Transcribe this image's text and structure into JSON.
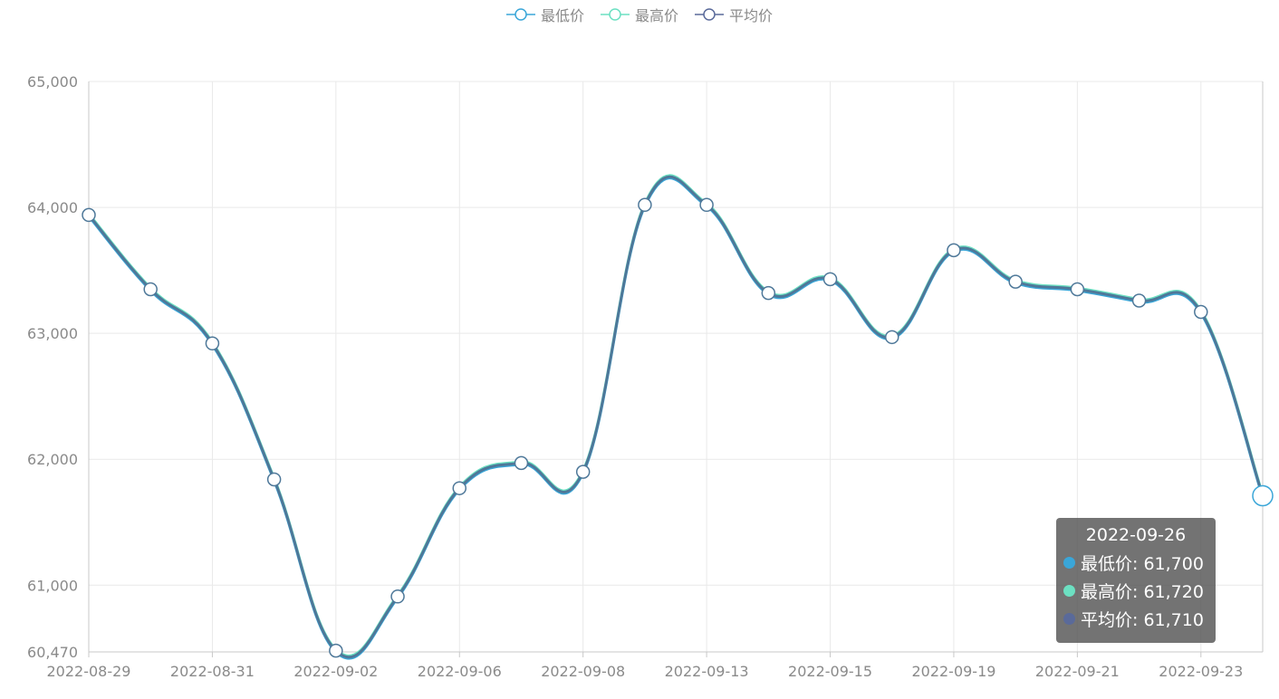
{
  "legend": [
    {
      "name": "最低价",
      "color": "#3aa6d8"
    },
    {
      "name": "最高价",
      "color": "#6ce0c2"
    },
    {
      "name": "平均价",
      "color": "#5a6a9a"
    }
  ],
  "tooltip": {
    "date": "2022-09-26",
    "rows": [
      {
        "label": "最低价: 61,700",
        "color": "#3aa6d8"
      },
      {
        "label": "最高价: 61,720",
        "color": "#6ce0c2"
      },
      {
        "label": "平均价: 61,710",
        "color": "#5a6a9a"
      }
    ]
  },
  "chart_data": {
    "type": "line",
    "title": "",
    "xlabel": "",
    "ylabel": "",
    "ylim": [
      60470,
      65000
    ],
    "y_ticks": [
      "65,000",
      "64,000",
      "63,000",
      "62,000",
      "61,000",
      "60,470"
    ],
    "y_tick_values": [
      65000,
      64000,
      63000,
      62000,
      61000,
      60470
    ],
    "x_tick_labels": [
      "2022-08-29",
      "2022-08-31",
      "2022-09-02",
      "2022-09-06",
      "2022-09-08",
      "2022-09-13",
      "2022-09-15",
      "2022-09-19",
      "2022-09-21",
      "2022-09-23"
    ],
    "x_tick_indices": [
      0,
      2,
      4,
      6,
      8,
      10,
      12,
      14,
      16,
      18
    ],
    "highlight_index": 19,
    "line_color": "#4e7899",
    "series": [
      {
        "name": "最低价",
        "color": "#3aa6d8",
        "values": [
          63930,
          63340,
          62910,
          61830,
          60470,
          60900,
          61760,
          61960,
          61890,
          64010,
          64010,
          63310,
          63420,
          62960,
          63650,
          63400,
          63340,
          63250,
          63160,
          61700
        ]
      },
      {
        "name": "最高价",
        "color": "#6ce0c2",
        "values": [
          63950,
          63360,
          62930,
          61850,
          60490,
          60920,
          61780,
          61980,
          61910,
          64030,
          64030,
          63330,
          63440,
          62980,
          63670,
          63420,
          63360,
          63270,
          63180,
          61720
        ]
      },
      {
        "name": "平均价",
        "color": "#5a6a9a",
        "values": [
          63940,
          63350,
          62920,
          61840,
          60480,
          60910,
          61770,
          61970,
          61900,
          64020,
          64020,
          63320,
          63430,
          62970,
          63660,
          63410,
          63350,
          63260,
          63170,
          61710
        ]
      }
    ]
  }
}
